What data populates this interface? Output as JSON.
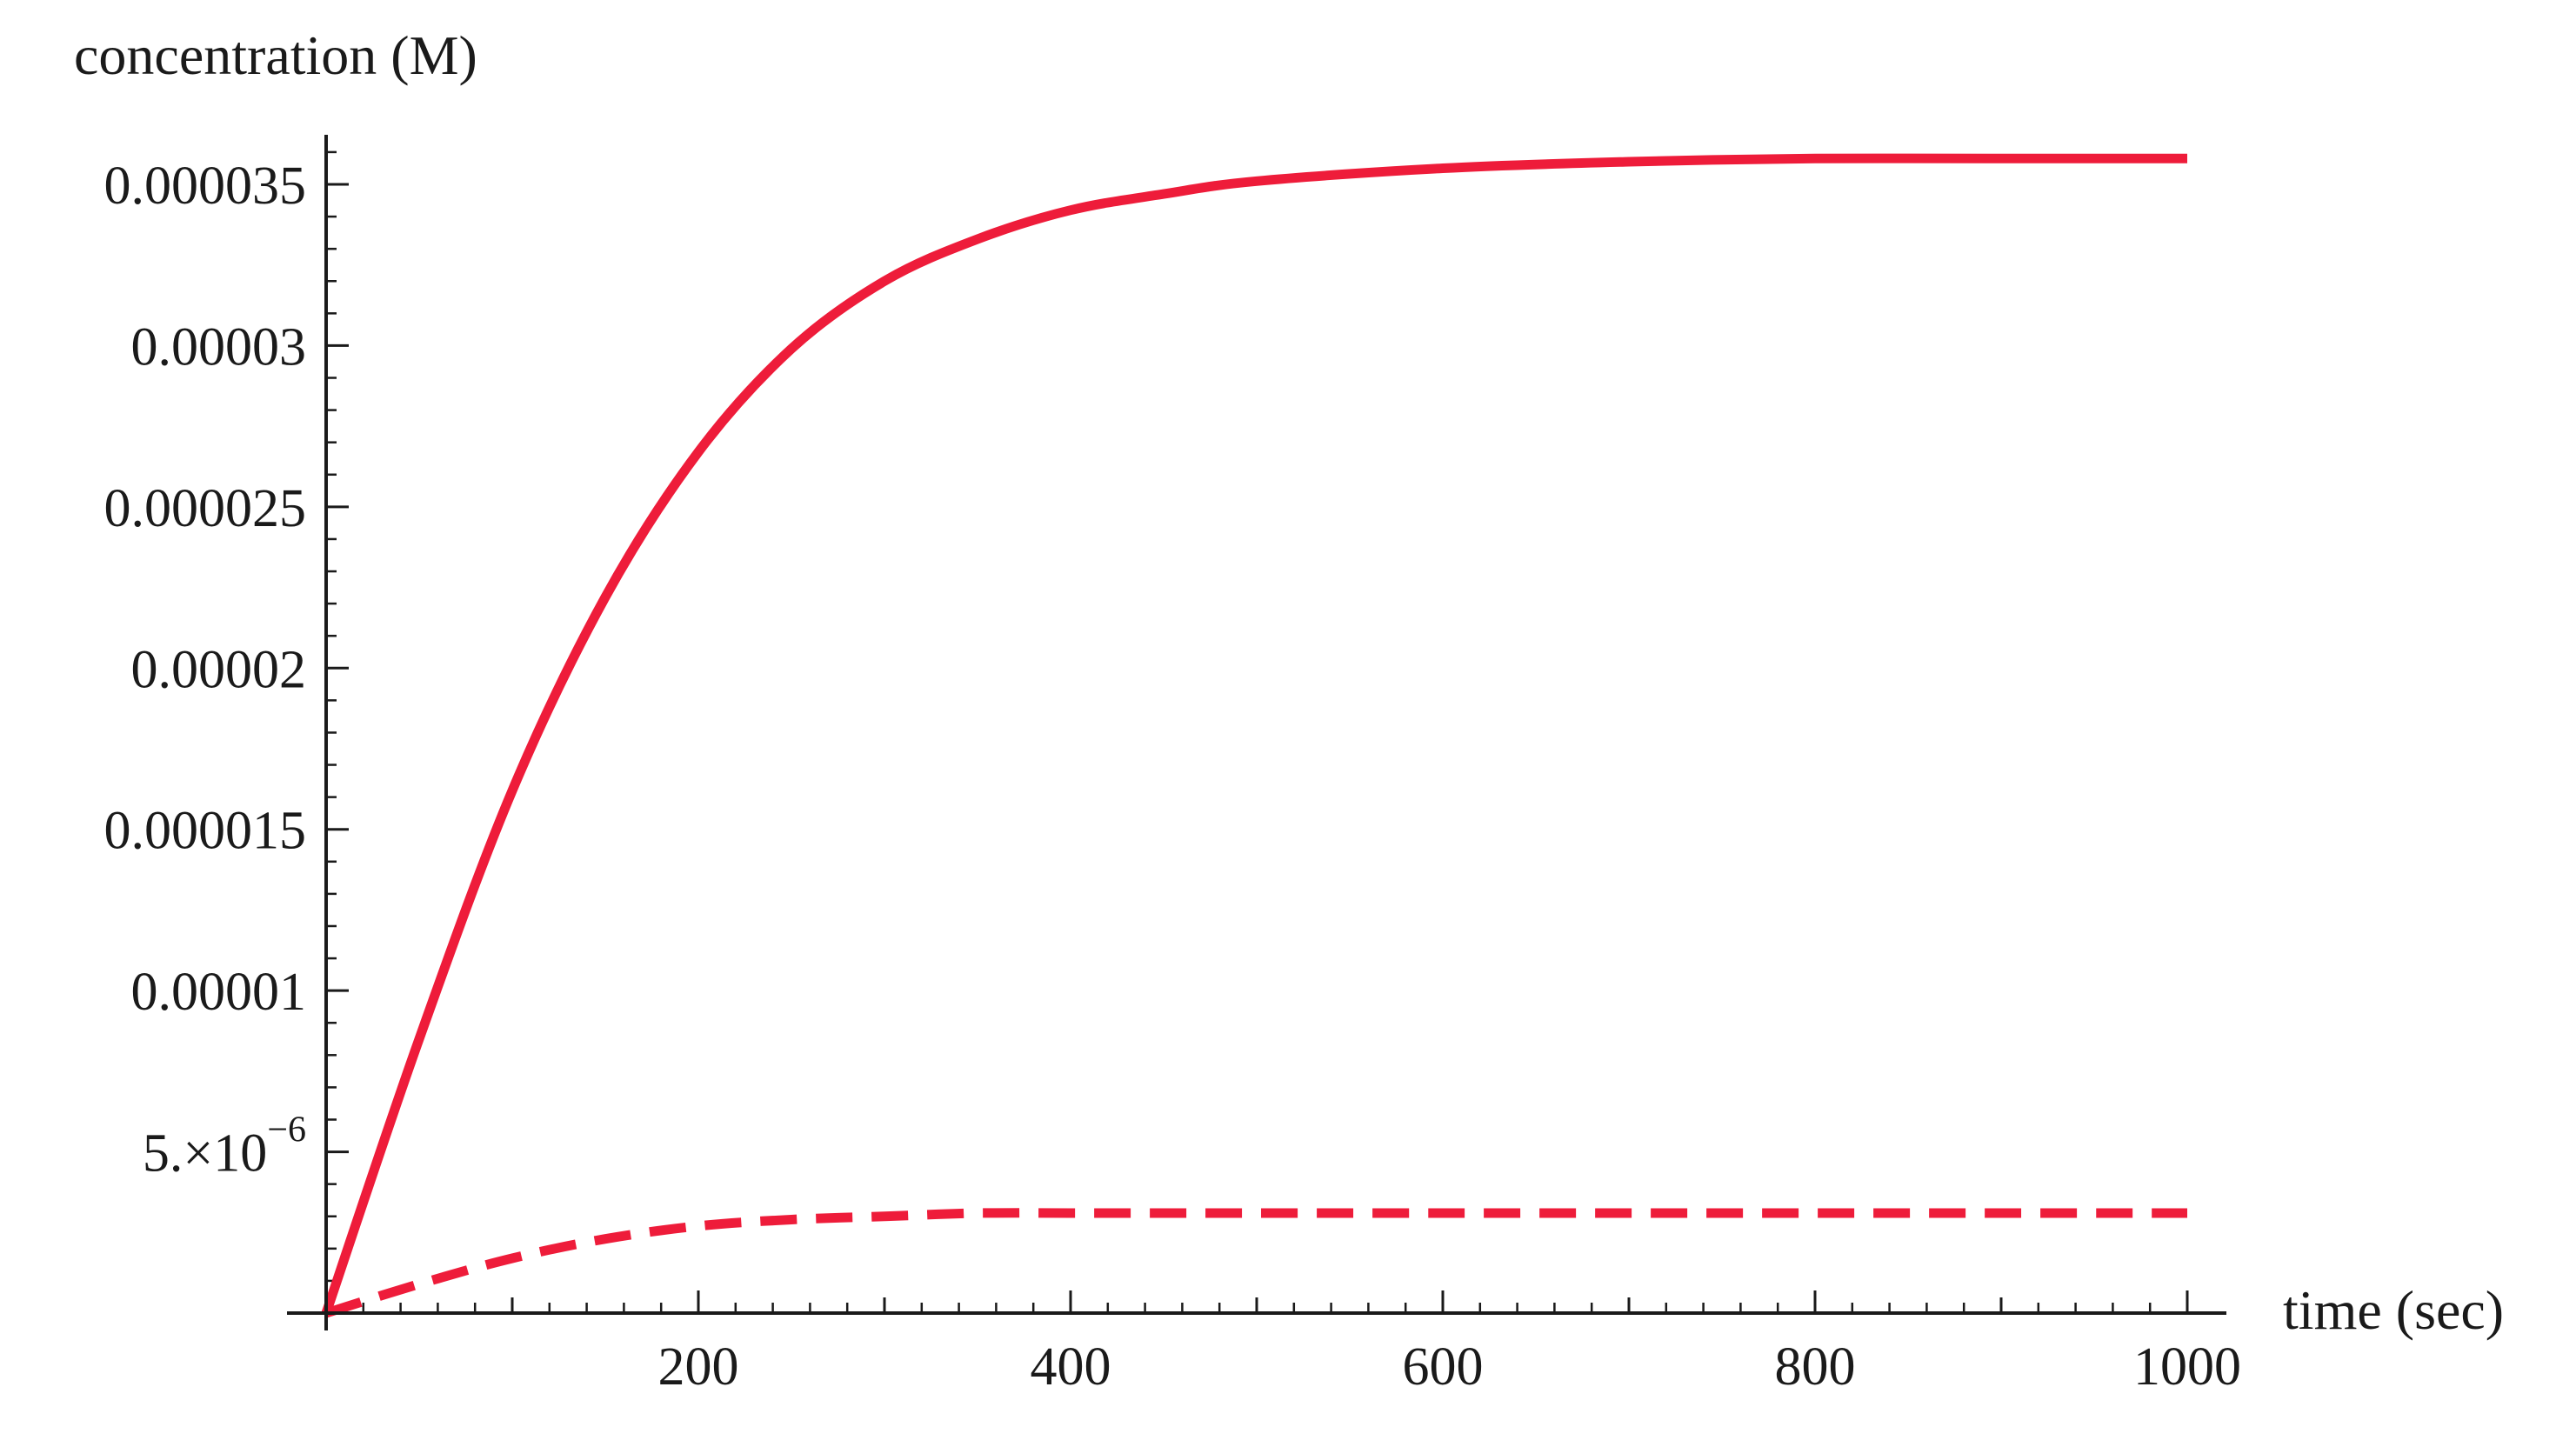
{
  "chart_data": {
    "type": "line",
    "xlabel": "time (sec)",
    "ylabel": "concentration (M)",
    "xlim": [
      0,
      1000
    ],
    "ylim": [
      0,
      3.6e-05
    ],
    "x_ticks": [
      {
        "value": 200,
        "label": "200"
      },
      {
        "value": 400,
        "label": "400"
      },
      {
        "value": 600,
        "label": "600"
      },
      {
        "value": 800,
        "label": "800"
      },
      {
        "value": 1000,
        "label": "1000"
      }
    ],
    "y_ticks": [
      {
        "value": 5e-06,
        "label_base": "5.×10",
        "label_exp": "−6"
      },
      {
        "value": 1e-05,
        "label": "0.00001"
      },
      {
        "value": 1.5e-05,
        "label": "0.000015"
      },
      {
        "value": 2e-05,
        "label": "0.00002"
      },
      {
        "value": 2.5e-05,
        "label": "0.000025"
      },
      {
        "value": 3e-05,
        "label": "0.00003"
      },
      {
        "value": 3.5e-05,
        "label": "0.000035"
      }
    ],
    "grid": false,
    "legend": "none",
    "series": [
      {
        "style": "solid",
        "color": "#ee1c3a",
        "x": [
          0,
          50,
          100,
          150,
          200,
          250,
          300,
          350,
          400,
          450,
          500,
          600,
          700,
          800,
          900,
          1000
        ],
        "y": [
          0,
          8.5e-06,
          1.62e-05,
          2.22e-05,
          2.67e-05,
          2.99e-05,
          3.2e-05,
          3.33e-05,
          3.42e-05,
          3.47e-05,
          3.51e-05,
          3.55e-05,
          3.57e-05,
          3.58e-05,
          3.58e-05,
          3.58e-05
        ]
      },
      {
        "style": "dashed",
        "color": "#ee1c3a",
        "x": [
          0,
          50,
          100,
          150,
          200,
          250,
          300,
          350,
          400,
          450,
          500,
          600,
          700,
          800,
          900,
          1000
        ],
        "y": [
          0,
          9e-07,
          1.7e-06,
          2.3e-06,
          2.7e-06,
          2.9e-06,
          3e-06,
          3.1e-06,
          3.1e-06,
          3.1e-06,
          3.1e-06,
          3.1e-06,
          3.1e-06,
          3.1e-06,
          3.1e-06,
          3.1e-06
        ]
      }
    ]
  }
}
